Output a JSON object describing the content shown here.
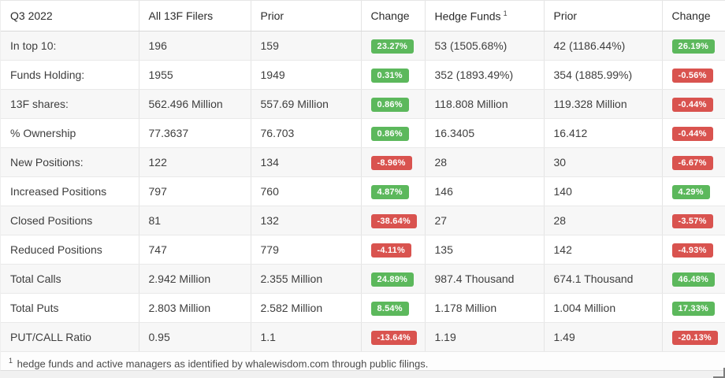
{
  "colors": {
    "positive": "#5cb85c",
    "negative": "#d9534f",
    "row_stripe": "#f7f7f7",
    "text": "#3e3e3e"
  },
  "table": {
    "period": "Q3 2022",
    "columns": [
      {
        "label": "Q3 2022",
        "sup": ""
      },
      {
        "label": "All 13F Filers",
        "sup": ""
      },
      {
        "label": "Prior",
        "sup": ""
      },
      {
        "label": "Change",
        "sup": ""
      },
      {
        "label": "Hedge Funds",
        "sup": "1"
      },
      {
        "label": "Prior",
        "sup": ""
      },
      {
        "label": "Change",
        "sup": ""
      }
    ],
    "rows": [
      {
        "metric": "In top 10:",
        "all_value": "196",
        "all_prior": "159",
        "all_change": "23.27%",
        "all_change_dir": "up",
        "hf_value": "53 (1505.68%)",
        "hf_prior": "42 (1186.44%)",
        "hf_change": "26.19%",
        "hf_change_dir": "up"
      },
      {
        "metric": "Funds Holding:",
        "all_value": "1955",
        "all_prior": "1949",
        "all_change": "0.31%",
        "all_change_dir": "up",
        "hf_value": "352 (1893.49%)",
        "hf_prior": "354 (1885.99%)",
        "hf_change": "-0.56%",
        "hf_change_dir": "down"
      },
      {
        "metric": "13F shares:",
        "all_value": "562.496 Million",
        "all_prior": "557.69 Million",
        "all_change": "0.86%",
        "all_change_dir": "up",
        "hf_value": "118.808 Million",
        "hf_prior": "119.328 Million",
        "hf_change": "-0.44%",
        "hf_change_dir": "down"
      },
      {
        "metric": "% Ownership",
        "all_value": "77.3637",
        "all_prior": "76.703",
        "all_change": "0.86%",
        "all_change_dir": "up",
        "hf_value": "16.3405",
        "hf_prior": "16.412",
        "hf_change": "-0.44%",
        "hf_change_dir": "down"
      },
      {
        "metric": "New Positions:",
        "all_value": "122",
        "all_prior": "134",
        "all_change": "-8.96%",
        "all_change_dir": "down",
        "hf_value": "28",
        "hf_prior": "30",
        "hf_change": "-6.67%",
        "hf_change_dir": "down"
      },
      {
        "metric": "Increased Positions",
        "all_value": "797",
        "all_prior": "760",
        "all_change": "4.87%",
        "all_change_dir": "up",
        "hf_value": "146",
        "hf_prior": "140",
        "hf_change": "4.29%",
        "hf_change_dir": "up"
      },
      {
        "metric": "Closed Positions",
        "all_value": "81",
        "all_prior": "132",
        "all_change": "-38.64%",
        "all_change_dir": "down",
        "hf_value": "27",
        "hf_prior": "28",
        "hf_change": "-3.57%",
        "hf_change_dir": "down"
      },
      {
        "metric": "Reduced Positions",
        "all_value": "747",
        "all_prior": "779",
        "all_change": "-4.11%",
        "all_change_dir": "down",
        "hf_value": "135",
        "hf_prior": "142",
        "hf_change": "-4.93%",
        "hf_change_dir": "down"
      },
      {
        "metric": "Total Calls",
        "all_value": "2.942 Million",
        "all_prior": "2.355 Million",
        "all_change": "24.89%",
        "all_change_dir": "up",
        "hf_value": "987.4 Thousand",
        "hf_prior": "674.1 Thousand",
        "hf_change": "46.48%",
        "hf_change_dir": "up"
      },
      {
        "metric": "Total Puts",
        "all_value": "2.803 Million",
        "all_prior": "2.582 Million",
        "all_change": "8.54%",
        "all_change_dir": "up",
        "hf_value": "1.178 Million",
        "hf_prior": "1.004 Million",
        "hf_change": "17.33%",
        "hf_change_dir": "up"
      },
      {
        "metric": "PUT/CALL Ratio",
        "all_value": "0.95",
        "all_prior": "1.1",
        "all_change": "-13.64%",
        "all_change_dir": "down",
        "hf_value": "1.19",
        "hf_prior": "1.49",
        "hf_change": "-20.13%",
        "hf_change_dir": "down"
      }
    ]
  },
  "footnote": {
    "marker": "1",
    "text": " hedge funds and active managers as identified by whalewisdom.com through public filings."
  }
}
